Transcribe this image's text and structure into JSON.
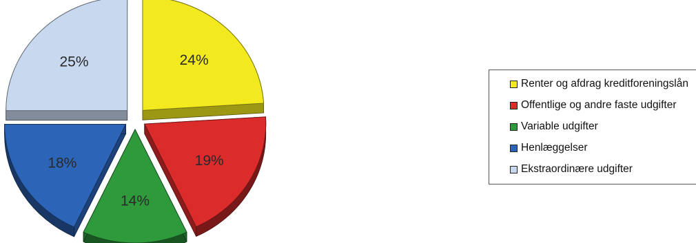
{
  "chart_data": {
    "type": "pie",
    "style": "3d-exploded",
    "categories": [
      "Renter og afdrag kreditforeningslån",
      "Offentlige og andre faste udgifter",
      "Variable udgifter",
      "Henlæggelser",
      "Ekstraordinære udgifter"
    ],
    "values": [
      24,
      19,
      14,
      18,
      25
    ],
    "labels": [
      "24%",
      "19%",
      "14%",
      "18%",
      "25%"
    ],
    "colors": [
      "#f2ea1e",
      "#dc2b2b",
      "#2e9a3c",
      "#2c64b8",
      "#c8d8ee"
    ],
    "legend_position": "right"
  }
}
